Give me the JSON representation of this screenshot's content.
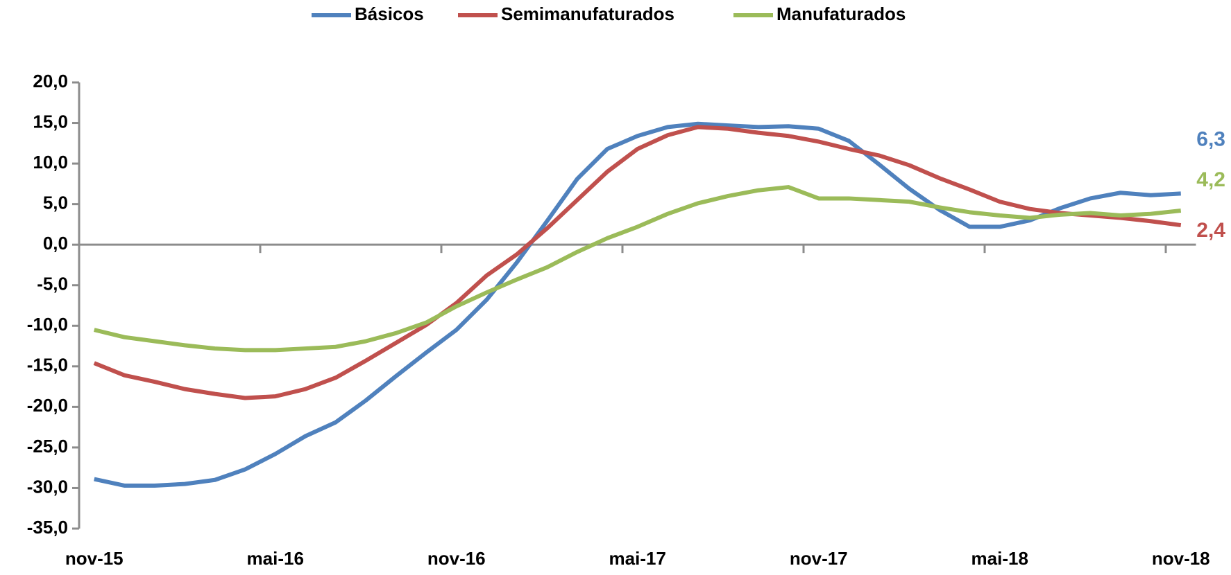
{
  "chart_data": {
    "type": "line",
    "categories": [
      "nov-15",
      null,
      null,
      null,
      null,
      null,
      "mai-16",
      null,
      null,
      null,
      null,
      null,
      "nov-16",
      null,
      null,
      null,
      null,
      null,
      "mai-17",
      null,
      null,
      null,
      null,
      null,
      "nov-17",
      null,
      null,
      null,
      null,
      null,
      "mai-18",
      null,
      null,
      null,
      null,
      null,
      "nov-18"
    ],
    "series": [
      {
        "name": "Básicos",
        "color": "#4f81bd",
        "values": [
          -28.9,
          -29.7,
          -29.7,
          -29.5,
          -29.0,
          -27.7,
          -25.8,
          -23.6,
          -21.9,
          -19.2,
          -16.2,
          -13.3,
          -10.5,
          -6.8,
          -2.2,
          2.9,
          8.1,
          11.8,
          13.4,
          14.5,
          14.9,
          14.7,
          14.5,
          14.6,
          14.3,
          12.8,
          9.9,
          6.9,
          4.3,
          2.2,
          2.2,
          3.0,
          4.5,
          5.7,
          6.4,
          6.1,
          6.3
        ],
        "value_labels": [
          null,
          null,
          null,
          null,
          null,
          null,
          null,
          null,
          null,
          null,
          null,
          null,
          null,
          null,
          null,
          null,
          null,
          null,
          null,
          null,
          null,
          null,
          null,
          null,
          null,
          null,
          null,
          null,
          null,
          null,
          null,
          null,
          null,
          null,
          null,
          null,
          "6,3"
        ]
      },
      {
        "name": "Semimanufaturados",
        "color": "#c0504d",
        "values": [
          -14.6,
          -16.1,
          -16.9,
          -17.8,
          -18.4,
          -18.9,
          -18.7,
          -17.8,
          -16.4,
          -14.3,
          -12.1,
          -9.9,
          -7.2,
          -3.8,
          -1.2,
          2.0,
          5.5,
          9.0,
          11.8,
          13.5,
          14.5,
          14.3,
          13.8,
          13.4,
          12.7,
          11.8,
          11.0,
          9.8,
          8.2,
          6.8,
          5.3,
          4.4,
          3.9,
          3.6,
          3.3,
          2.9,
          2.4
        ],
        "value_labels": [
          null,
          null,
          null,
          null,
          null,
          null,
          null,
          null,
          null,
          null,
          null,
          null,
          null,
          null,
          null,
          null,
          null,
          null,
          null,
          null,
          null,
          null,
          null,
          null,
          null,
          null,
          null,
          null,
          null,
          null,
          null,
          null,
          null,
          null,
          null,
          null,
          "2,4"
        ]
      },
      {
        "name": "Manufaturados",
        "color": "#9bbb59",
        "values": [
          -10.5,
          -11.4,
          -11.9,
          -12.4,
          -12.8,
          -13.0,
          -13.0,
          -12.8,
          -12.6,
          -11.9,
          -10.9,
          -9.6,
          -7.6,
          -5.9,
          -4.3,
          -2.8,
          -0.9,
          0.8,
          2.2,
          3.8,
          5.1,
          6.0,
          6.7,
          7.1,
          5.7,
          5.7,
          5.5,
          5.3,
          4.6,
          4.0,
          3.6,
          3.3,
          3.7,
          3.9,
          3.6,
          3.8,
          4.2
        ],
        "value_labels": [
          null,
          null,
          null,
          null,
          null,
          null,
          null,
          null,
          null,
          null,
          null,
          null,
          null,
          null,
          null,
          null,
          null,
          null,
          null,
          null,
          null,
          null,
          null,
          null,
          null,
          null,
          null,
          null,
          null,
          null,
          null,
          null,
          null,
          null,
          null,
          null,
          "4,2"
        ]
      }
    ],
    "ylim": [
      -35,
      20
    ],
    "yticks": [
      {
        "value": -35,
        "label": "-35,0"
      },
      {
        "value": -30,
        "label": "-30,0"
      },
      {
        "value": -25,
        "label": "-25,0"
      },
      {
        "value": -20,
        "label": "-20,0"
      },
      {
        "value": -15,
        "label": "-15,0"
      },
      {
        "value": -10,
        "label": "-10,0"
      },
      {
        "value": -5,
        "label": "-5,0"
      },
      {
        "value": 0,
        "label": "0,0"
      },
      {
        "value": 5,
        "label": "5,0"
      },
      {
        "value": 10,
        "label": "10,0"
      },
      {
        "value": 15,
        "label": "15,0"
      },
      {
        "value": 20,
        "label": "20,0"
      }
    ],
    "grid": false,
    "legend": "top"
  }
}
